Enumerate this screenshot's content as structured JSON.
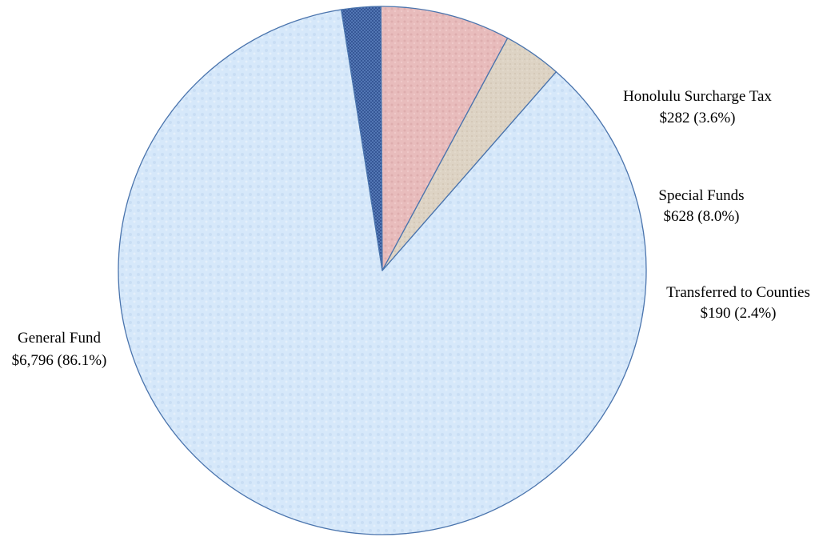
{
  "chart_data": {
    "type": "pie",
    "title": "",
    "slices": [
      {
        "name": "General Fund",
        "value": 6796,
        "percent": 86.1,
        "value_label": "$6,796 (86.1%)",
        "color": "#d6e8fa"
      },
      {
        "name": "Transferred to Counties",
        "value": 190,
        "percent": 2.4,
        "value_label": "$190 (2.4%)",
        "color": "#5a7fbc"
      },
      {
        "name": "Special Funds",
        "value": 628,
        "percent": 8.0,
        "value_label": "$628 (8.0%)",
        "color": "#e8bcbc"
      },
      {
        "name": "Honolulu Surcharge Tax",
        "value": 282,
        "percent": 3.6,
        "value_label": "$282 (3.6%)",
        "color": "#ddd3c4"
      }
    ],
    "legend": "none"
  },
  "colors": {
    "outline": "#4a74ad"
  }
}
